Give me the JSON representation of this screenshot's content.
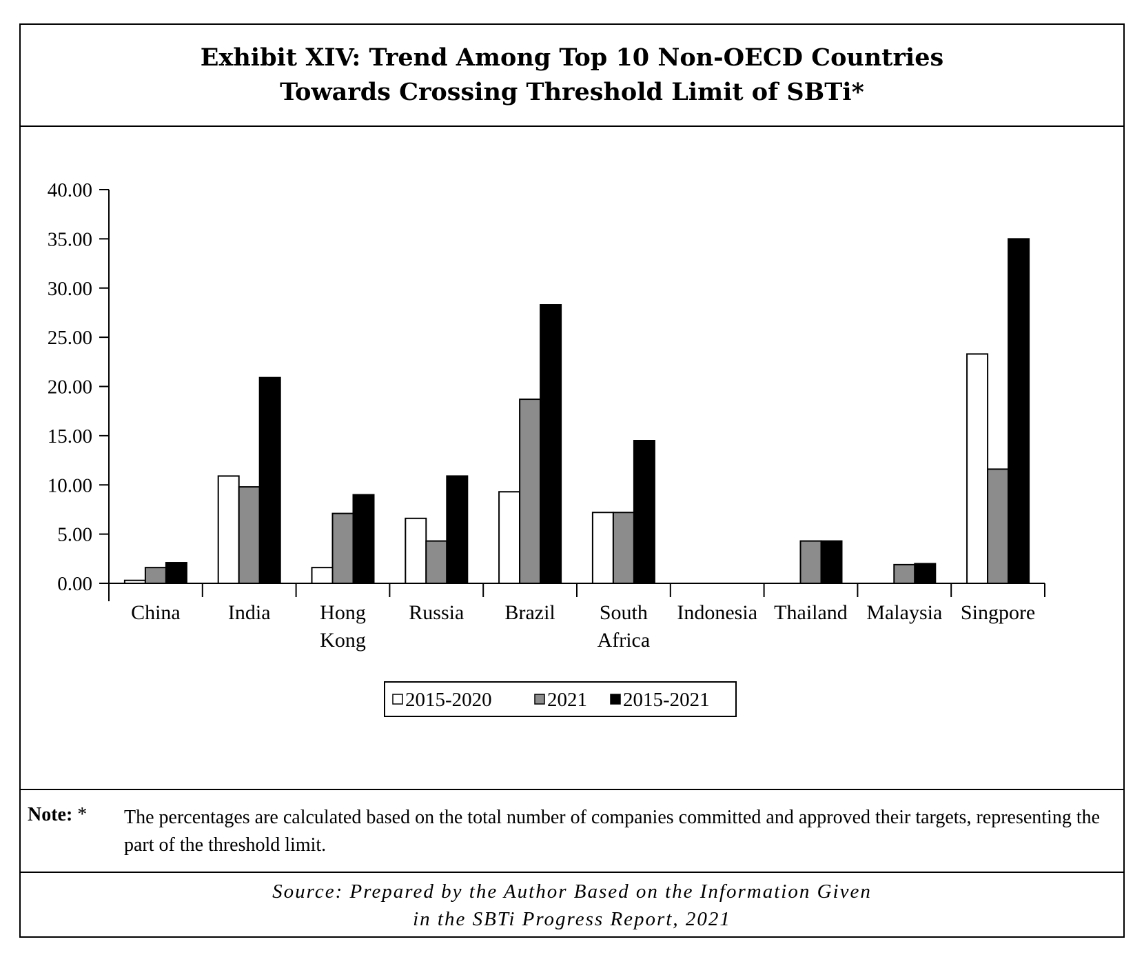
{
  "title": {
    "line1": "Exhibit XIV: Trend Among Top 10 Non-OECD Countries",
    "line2": "Towards Crossing Threshold Limit of SBTi*"
  },
  "note": {
    "label": "Note:",
    "marker": "*",
    "text": "The percentages are calculated based on the total number of companies committed and approved their targets, representing the part of the threshold limit."
  },
  "source": {
    "line1": "Source: Prepared by the Author Based on the Information Given",
    "line2": "in the SBTi Progress Report, 2021"
  },
  "chart_data": {
    "type": "bar",
    "categories": [
      [
        "China"
      ],
      [
        "India"
      ],
      [
        "Hong",
        "Kong"
      ],
      [
        "Russia"
      ],
      [
        "Brazil"
      ],
      [
        "South",
        "Africa"
      ],
      [
        "Indonesia"
      ],
      [
        "Thailand"
      ],
      [
        "Malaysia"
      ],
      [
        "Singpore"
      ]
    ],
    "series": [
      {
        "name": "2015-2020",
        "color": "#ffffff",
        "values": [
          0.3,
          10.9,
          1.6,
          6.6,
          9.3,
          7.2,
          0,
          0,
          0,
          23.3
        ]
      },
      {
        "name": "2021",
        "color": "#8c8c8c",
        "values": [
          1.6,
          9.8,
          7.1,
          4.3,
          18.7,
          7.2,
          0,
          4.3,
          1.9,
          11.6
        ]
      },
      {
        "name": "2015-2021",
        "color": "#000000",
        "values": [
          2.1,
          20.9,
          9.0,
          10.9,
          28.3,
          14.5,
          0,
          4.3,
          2.0,
          35.0
        ]
      }
    ],
    "yticks": [
      "40.00",
      "35.00",
      "30.00",
      "25.00",
      "20.00",
      "15.00",
      "10.00",
      "5.00",
      "0.00"
    ],
    "ylim": [
      0,
      40
    ],
    "legend_position": "bottom-center",
    "grid": false
  }
}
